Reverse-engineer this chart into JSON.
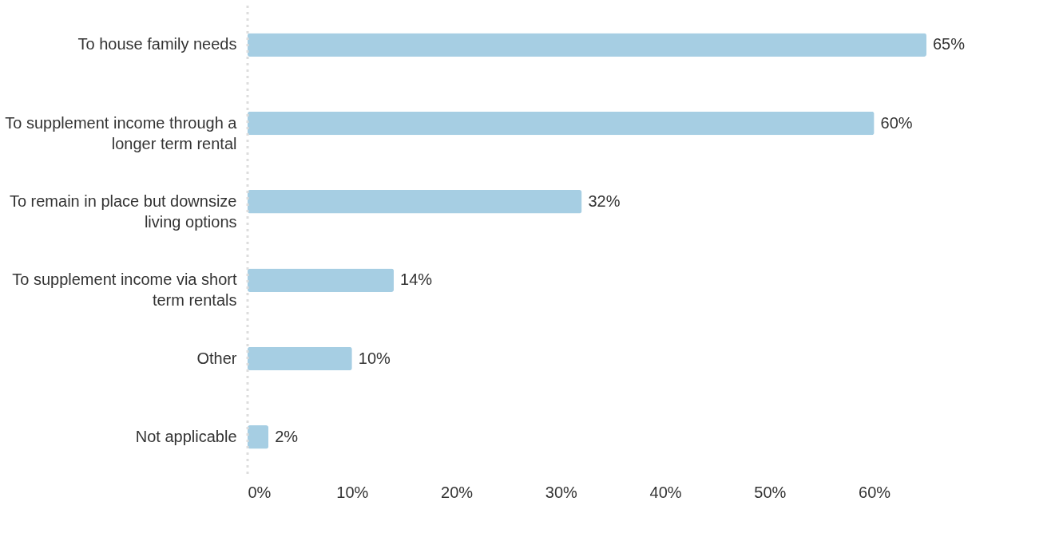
{
  "chart_data": {
    "type": "bar",
    "orientation": "horizontal",
    "categories": [
      "To house family needs",
      "To supplement income through a longer term rental",
      "To remain in place but downsize living options",
      "To supplement income via short term rentals",
      "Other",
      "Not applicable"
    ],
    "values": [
      65,
      60,
      32,
      14,
      10,
      2
    ],
    "value_labels": [
      "65%",
      "60%",
      "32%",
      "14%",
      "10%",
      "2%"
    ],
    "color": "#a6cee3",
    "xlim": [
      0,
      65
    ],
    "xticks": [
      {
        "value": 0,
        "label": "0%"
      },
      {
        "value": 10,
        "label": "10%"
      },
      {
        "value": 20,
        "label": "20%"
      },
      {
        "value": 30,
        "label": "30%"
      },
      {
        "value": 40,
        "label": "40%"
      },
      {
        "value": 50,
        "label": "50%"
      },
      {
        "value": 60,
        "label": "60%"
      }
    ],
    "ref_lines": [
      {
        "axis": "x",
        "value": 0,
        "line_style": "dotted",
        "color": "#dddddd"
      }
    ],
    "grid": false
  }
}
